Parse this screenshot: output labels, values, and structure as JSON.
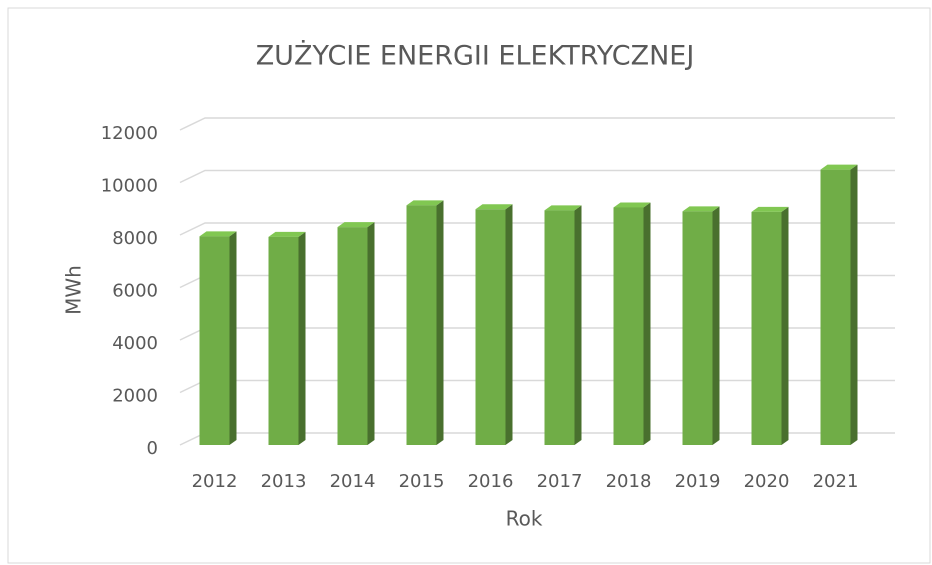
{
  "chart_data": {
    "type": "bar",
    "title": "ZUŻYCIE ENERGII ELEKTRYCZNEJ",
    "x_label": "Rok",
    "y_label": "MWh",
    "categories": [
      "2012",
      "2013",
      "2014",
      "2015",
      "2016",
      "2017",
      "2018",
      "2019",
      "2020",
      "2021"
    ],
    "values": [
      7950,
      7930,
      8300,
      9130,
      8980,
      8940,
      9050,
      8900,
      8880,
      10490
    ],
    "color": "#70ad47",
    "ylim": [
      0,
      12000
    ],
    "yticks": [
      0,
      2000,
      4000,
      6000,
      8000,
      10000,
      12000
    ],
    "grid": true
  }
}
